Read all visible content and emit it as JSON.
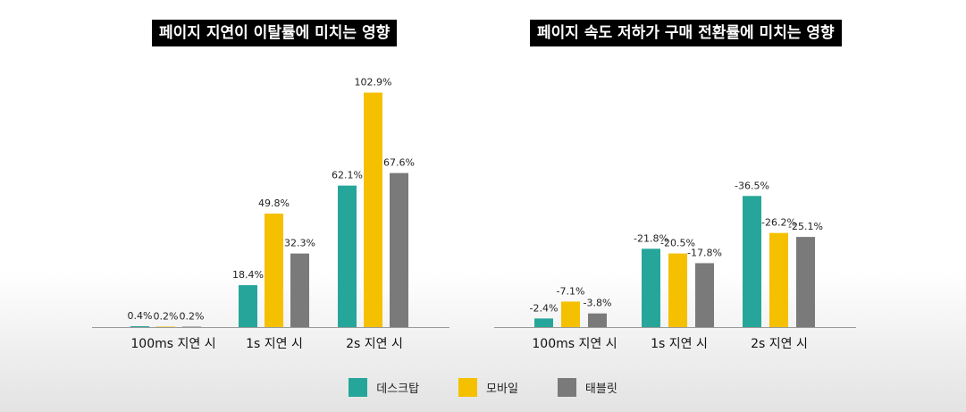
{
  "colors": {
    "desktop": "#26a69a",
    "mobile": "#f5c000",
    "tablet": "#7a7a7a"
  },
  "legend": [
    {
      "label": "데스크탑",
      "color": "#26a69a"
    },
    {
      "label": "모바일",
      "color": "#f5c000"
    },
    {
      "label": "태블릿",
      "color": "#7a7a7a"
    }
  ],
  "chart_data": [
    {
      "type": "bar",
      "title": "페이지 지연이 이탈률에 미치는 영향",
      "categories": [
        "100ms 지연 시",
        "1s 지연 시",
        "2s 지연 시"
      ],
      "series": [
        {
          "name": "데스크탑",
          "values": [
            0.4,
            18.4,
            62.1
          ],
          "labels": [
            "0.4%",
            "18.4%",
            "62.1%"
          ]
        },
        {
          "name": "모바일",
          "values": [
            0.2,
            49.8,
            102.9
          ],
          "labels": [
            "0.2%",
            "49.8%",
            "102.9%"
          ]
        },
        {
          "name": "태블릿",
          "values": [
            0.2,
            32.3,
            67.6
          ],
          "labels": [
            "0.2%",
            "32.3%",
            "67.6%"
          ]
        }
      ],
      "ylim": [
        0,
        110
      ],
      "grid": false,
      "legend_position": "bottom-center"
    },
    {
      "type": "bar",
      "title": "페이지 속도 저하가 구매 전환률에 미치는 영향",
      "categories": [
        "100ms 지연 시",
        "1s 지연 시",
        "2s 지연 시"
      ],
      "series": [
        {
          "name": "데스크탑",
          "values": [
            -2.4,
            -21.8,
            -36.5
          ],
          "labels": [
            "-2.4%",
            "-21.8%",
            "-36.5%"
          ]
        },
        {
          "name": "모바일",
          "values": [
            -7.1,
            -20.5,
            -26.2
          ],
          "labels": [
            "-7.1%",
            "-20.5%",
            "-26.2%"
          ]
        },
        {
          "name": "태블릿",
          "values": [
            -3.8,
            -17.8,
            -25.1
          ],
          "labels": [
            "-3.8%",
            "-17.8%",
            "-25.1%"
          ]
        }
      ],
      "ylim": [
        0,
        40
      ],
      "grid": false,
      "legend_position": "bottom-center"
    }
  ]
}
